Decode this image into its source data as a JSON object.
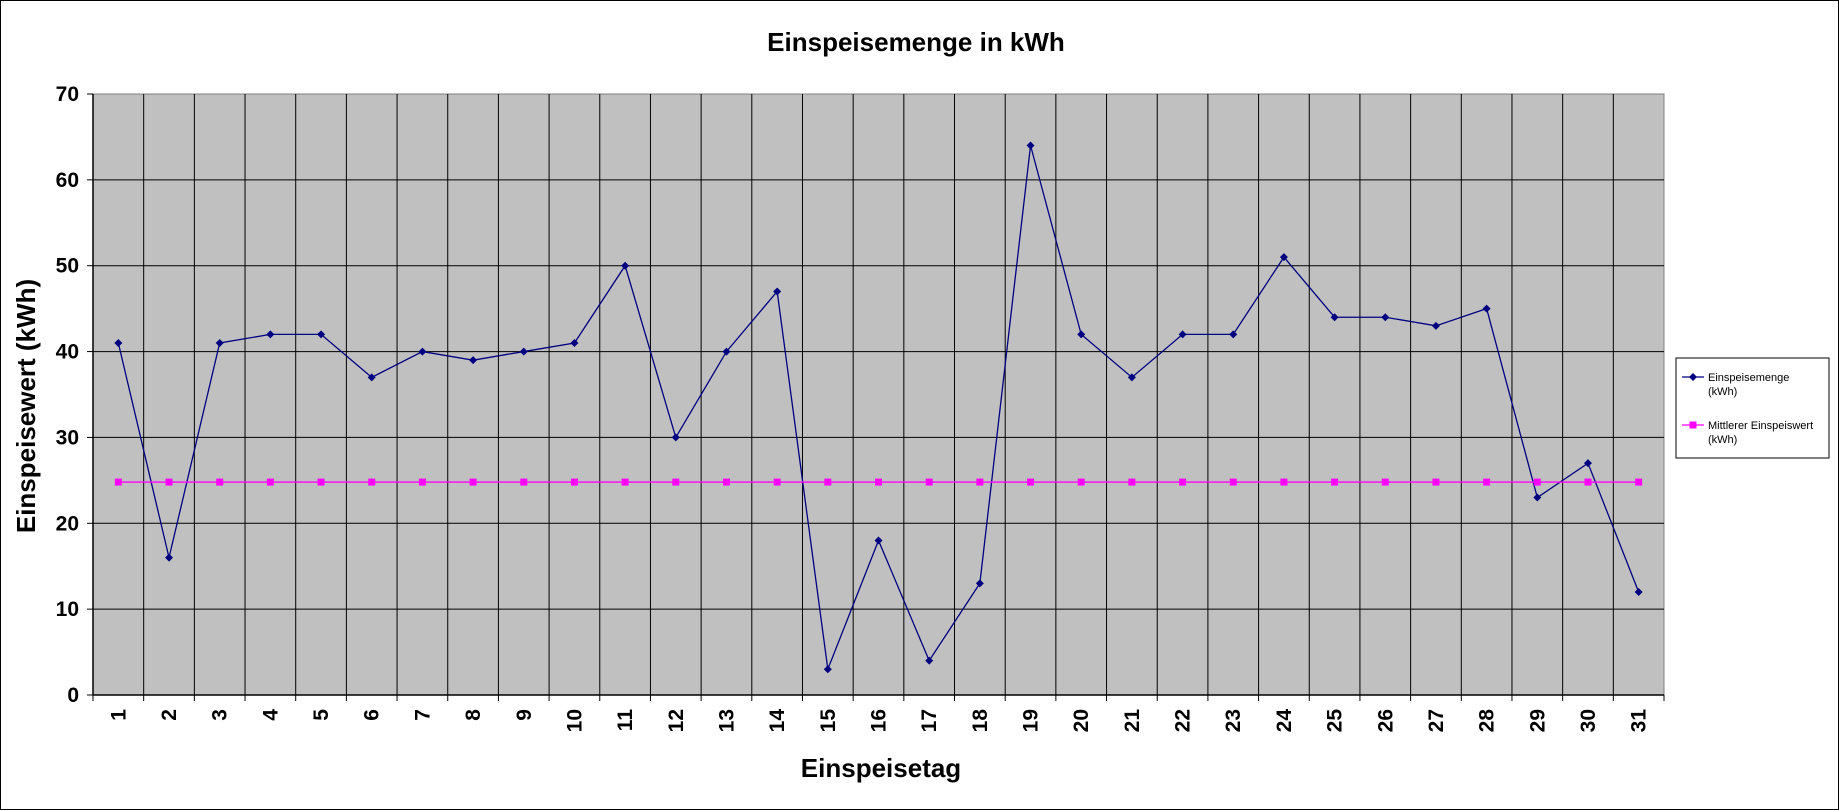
{
  "chart_data": {
    "type": "line",
    "title": "Einspeisemenge in kWh",
    "xlabel": "Einspeisetag",
    "ylabel": "Einspeisewert  (kWh)",
    "categories": [
      "1",
      "2",
      "3",
      "4",
      "5",
      "6",
      "7",
      "8",
      "9",
      "10",
      "11",
      "12",
      "13",
      "14",
      "15",
      "16",
      "17",
      "18",
      "19",
      "20",
      "21",
      "22",
      "23",
      "24",
      "25",
      "26",
      "27",
      "28",
      "29",
      "30",
      "31"
    ],
    "ylim": [
      0,
      70
    ],
    "yticks": [
      0,
      10,
      20,
      30,
      40,
      50,
      60,
      70
    ],
    "grid": true,
    "legend_position": "right",
    "plot_background": "#c0c0c0",
    "series": [
      {
        "name": "Einspeisemenge (kWh)",
        "legend_lines": [
          "Einspeisemenge",
          "(kWh)"
        ],
        "color": "#000080",
        "marker": "diamond",
        "values": [
          41,
          16,
          41,
          42,
          42,
          37,
          40,
          39,
          40,
          41,
          50,
          30,
          40,
          47,
          3,
          18,
          4,
          13,
          64,
          42,
          37,
          42,
          42,
          51,
          44,
          44,
          43,
          45,
          23,
          27,
          12
        ]
      },
      {
        "name": "Mittlerer Einspeiswert (kWh)",
        "legend_lines": [
          "Mittlerer Einspeiswert",
          "(kWh)"
        ],
        "color": "#ff00ff",
        "marker": "square",
        "values": [
          24.8,
          24.8,
          24.8,
          24.8,
          24.8,
          24.8,
          24.8,
          24.8,
          24.8,
          24.8,
          24.8,
          24.8,
          24.8,
          24.8,
          24.8,
          24.8,
          24.8,
          24.8,
          24.8,
          24.8,
          24.8,
          24.8,
          24.8,
          24.8,
          24.8,
          24.8,
          24.8,
          24.8,
          24.8,
          24.8,
          24.8
        ]
      }
    ]
  }
}
